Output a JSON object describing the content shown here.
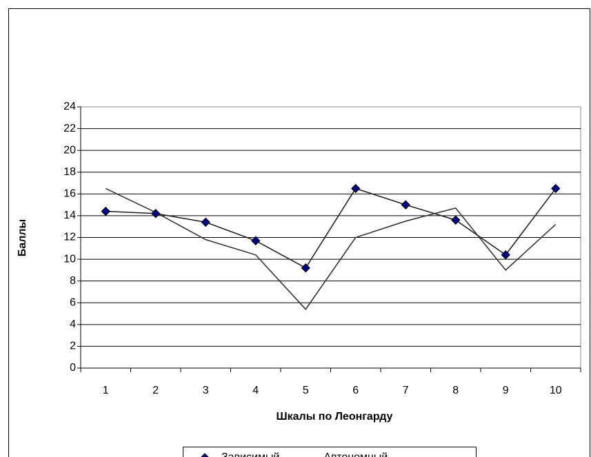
{
  "chart_data": {
    "type": "line",
    "x_label": "Шкалы по Леонгарду",
    "y_label": "Баллы",
    "categories": [
      "1",
      "2",
      "3",
      "4",
      "5",
      "6",
      "7",
      "8",
      "9",
      "10"
    ],
    "series": [
      {
        "name": "Зависимый",
        "color": "#000080",
        "marker": "diamond",
        "values": [
          14.4,
          14.2,
          13.4,
          11.7,
          9.2,
          16.5,
          15.0,
          13.6,
          10.4,
          16.5
        ]
      },
      {
        "name": "Автономный",
        "color": "#333333",
        "marker": "none",
        "values": [
          16.5,
          14.3,
          11.8,
          10.4,
          5.4,
          12.0,
          13.5,
          14.7,
          9.0,
          13.2
        ]
      }
    ],
    "ylim": [
      0,
      24
    ],
    "yticks": [
      0,
      2,
      4,
      6,
      8,
      10,
      12,
      14,
      16,
      18,
      20,
      22,
      24
    ],
    "grid": true,
    "legend": "bottom"
  }
}
